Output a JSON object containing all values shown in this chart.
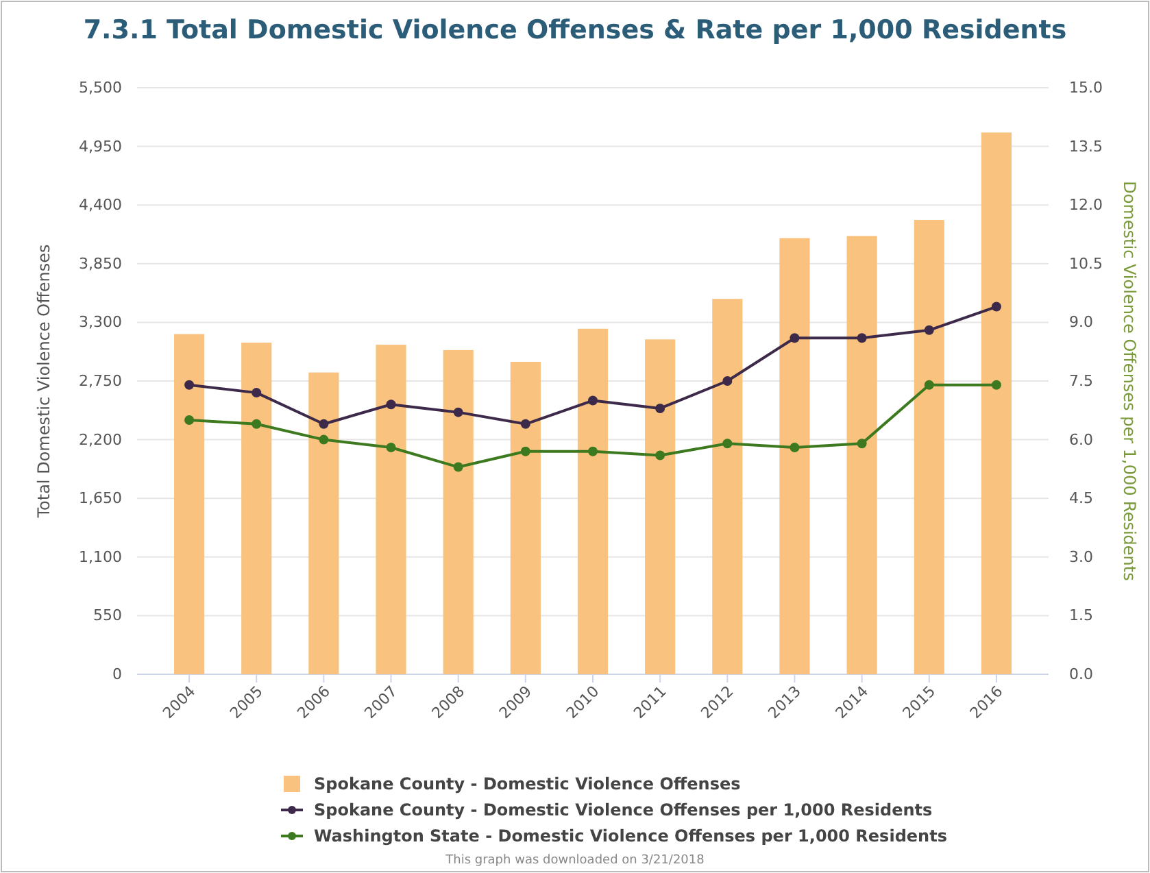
{
  "chart_data": {
    "type": "bar",
    "title": "7.3.1 Total Domestic Violence Offenses & Rate per 1,000 Residents",
    "ylabel": "Total Domestic Violence Offenses",
    "y2label": "Domestic Violence Offenses per 1,000 Residents",
    "categories": [
      "2004",
      "2005",
      "2006",
      "2007",
      "2008",
      "2009",
      "2010",
      "2011",
      "2012",
      "2013",
      "2014",
      "2015",
      "2016"
    ],
    "series": [
      {
        "name": "Spokane County - Domestic Violence Offenses",
        "color": "#f9c27e",
        "values": [
          3190,
          3110,
          2830,
          3090,
          3040,
          2930,
          3240,
          3140,
          3520,
          4090,
          4110,
          4260,
          5080
        ]
      },
      {
        "name": "Spokane County - Domestic Violence Offenses per 1,000 Residents",
        "type": "line",
        "axis": "y2",
        "color": "#3d2a4a",
        "values": [
          7.4,
          7.2,
          6.4,
          6.9,
          6.7,
          6.4,
          7.0,
          6.8,
          7.5,
          8.6,
          8.6,
          8.8,
          9.4
        ]
      },
      {
        "name": "Washington State - Domestic Violence Offenses per 1,000 Residents",
        "type": "line",
        "axis": "y2",
        "color": "#3d7a1f",
        "values": [
          6.5,
          6.4,
          6.0,
          5.8,
          5.3,
          5.7,
          5.7,
          5.6,
          5.9,
          5.8,
          5.9,
          7.4,
          7.4
        ]
      }
    ],
    "ylim": [
      0,
      5500
    ],
    "yticks": [
      {
        "value": 0,
        "label": "0"
      },
      {
        "value": 550,
        "label": "550"
      },
      {
        "value": 1100,
        "label": "1,100"
      },
      {
        "value": 1650,
        "label": "1,650"
      },
      {
        "value": 2200,
        "label": "2,200"
      },
      {
        "value": 2750,
        "label": "2,750"
      },
      {
        "value": 3300,
        "label": "3,300"
      },
      {
        "value": 3850,
        "label": "3,850"
      },
      {
        "value": 4400,
        "label": "4,400"
      },
      {
        "value": 4950,
        "label": "4,950"
      },
      {
        "value": 5500,
        "label": "5,500"
      }
    ],
    "y2lim": [
      0,
      15
    ],
    "y2ticks": [
      {
        "value": 0,
        "label": "0.0"
      },
      {
        "value": 1.5,
        "label": "1.5"
      },
      {
        "value": 3,
        "label": "3.0"
      },
      {
        "value": 4.5,
        "label": "4.5"
      },
      {
        "value": 6,
        "label": "6.0"
      },
      {
        "value": 7.5,
        "label": "7.5"
      },
      {
        "value": 9,
        "label": "9.0"
      },
      {
        "value": 10.5,
        "label": "10.5"
      },
      {
        "value": 12,
        "label": "12.0"
      },
      {
        "value": 13.5,
        "label": "13.5"
      },
      {
        "value": 15,
        "label": "15.0"
      }
    ],
    "grid": "y",
    "legend": "bottom",
    "marker": "circle",
    "line_style": "solid",
    "annotations": [
      "This graph was downloaded on 3/21/2018"
    ]
  }
}
